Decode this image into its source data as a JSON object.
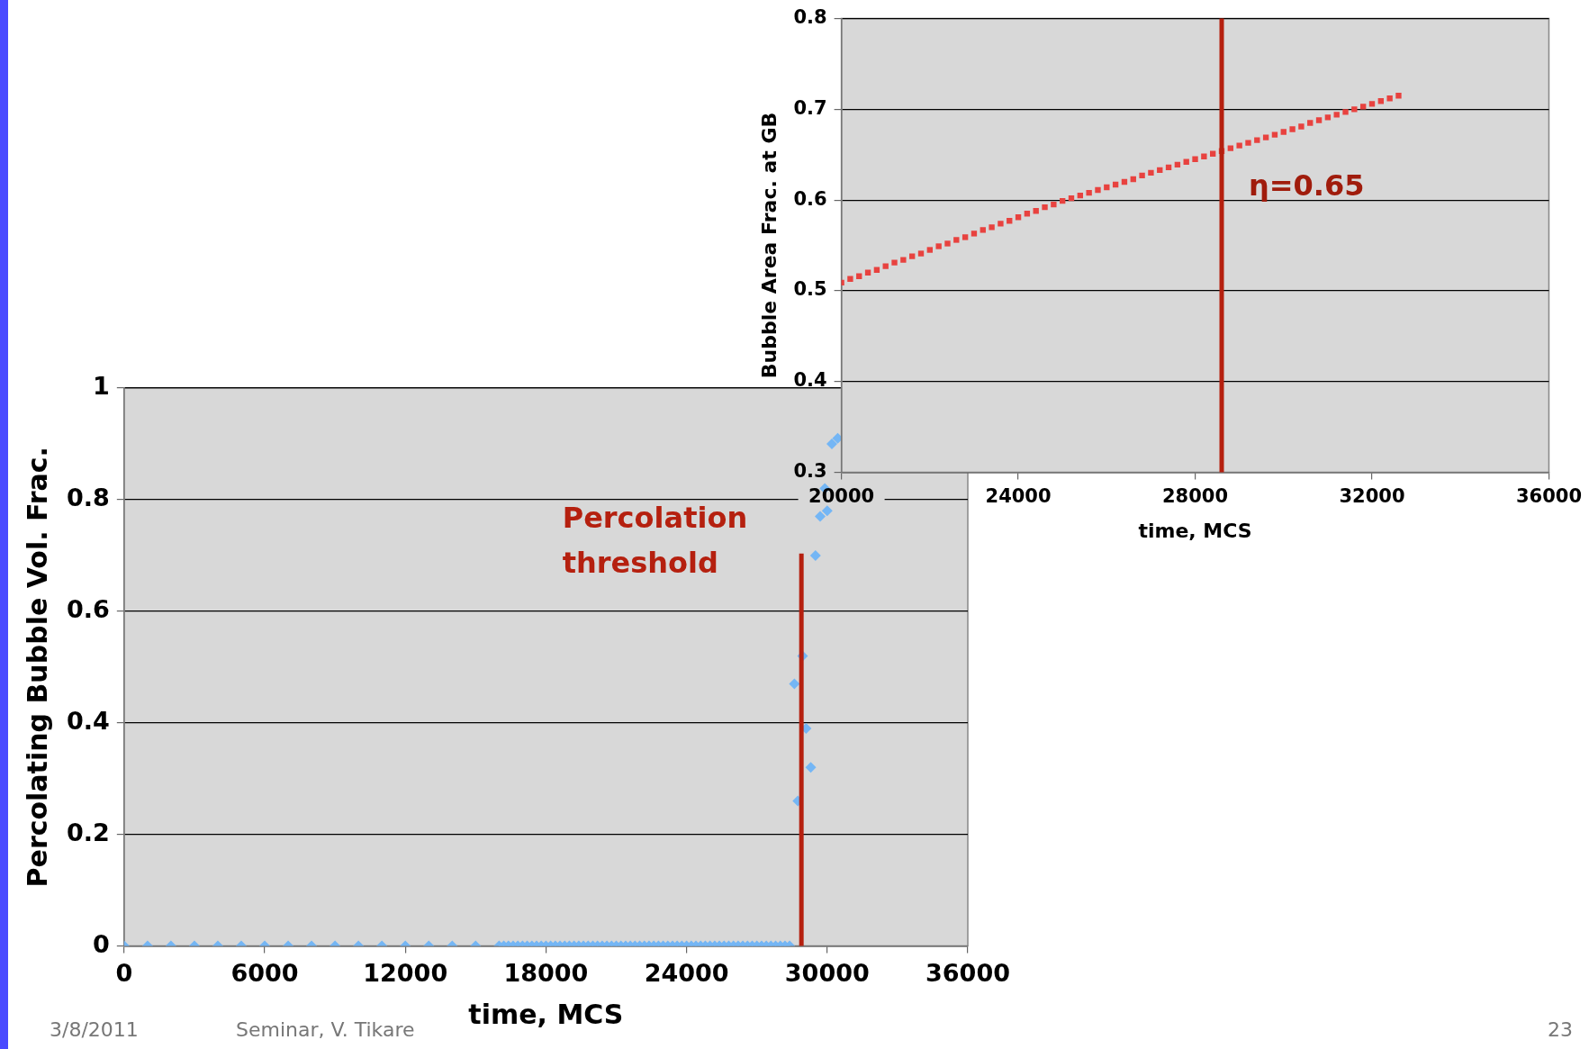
{
  "chart_data": [
    {
      "type": "scatter",
      "xlabel": "time, MCS",
      "ylabel": "Percolating Bubble Vol. Frac.",
      "xlim": [
        0,
        36000
      ],
      "ylim": [
        0,
        1
      ],
      "xticks": [
        0,
        6000,
        12000,
        18000,
        24000,
        30000,
        36000
      ],
      "yticks": [
        0,
        0.2,
        0.4,
        0.6,
        0.8,
        1
      ],
      "grid": "y",
      "marker": "diamond",
      "series": [
        {
          "color": "#74b6f5",
          "x": [
            0,
            1000,
            2000,
            3000,
            4000,
            5000,
            6000,
            7000,
            8000,
            9000,
            10000,
            11000,
            12000,
            13000,
            14000,
            15000,
            16000,
            16200,
            16400,
            16600,
            16800,
            17000,
            17200,
            17400,
            17600,
            17800,
            18000,
            18200,
            18400,
            18600,
            18800,
            19000,
            19200,
            19400,
            19600,
            19800,
            20000,
            20200,
            20400,
            20600,
            20800,
            21000,
            21200,
            21400,
            21600,
            21800,
            22000,
            22200,
            22400,
            22600,
            22800,
            23000,
            23200,
            23400,
            23600,
            23800,
            24000,
            24200,
            24400,
            24600,
            24800,
            25000,
            25200,
            25400,
            25600,
            25800,
            26000,
            26200,
            26400,
            26600,
            26800,
            27000,
            27200,
            27400,
            27600,
            27800,
            28000,
            28200,
            28400,
            28600,
            28750,
            28950,
            29100,
            29300,
            29500,
            29700,
            29900,
            30000,
            30200,
            30450
          ],
          "values": [
            0,
            0,
            0,
            0,
            0,
            0,
            0,
            0,
            0,
            0,
            0,
            0,
            0,
            0,
            0,
            0,
            0,
            0,
            0,
            0,
            0,
            0,
            0,
            0,
            0,
            0,
            0,
            0,
            0,
            0,
            0,
            0,
            0,
            0,
            0,
            0,
            0,
            0,
            0,
            0,
            0,
            0,
            0,
            0,
            0,
            0,
            0,
            0,
            0,
            0,
            0,
            0,
            0,
            0,
            0,
            0,
            0,
            0,
            0,
            0,
            0,
            0,
            0,
            0,
            0,
            0,
            0,
            0,
            0,
            0,
            0,
            0,
            0,
            0,
            0,
            0,
            0,
            0,
            0,
            0.47,
            0.26,
            0.52,
            0.39,
            0.32,
            0.7,
            0.77,
            0.82,
            0.78,
            0.9,
            0.91
          ]
        }
      ],
      "ref_lines": [
        {
          "axis": "x",
          "value": 28900,
          "label": "Percolation threshold",
          "color": "#b5200f"
        }
      ],
      "annotations": [
        "3/8/2011",
        "Seminar, V. Tikare",
        "23"
      ]
    },
    {
      "type": "scatter",
      "xlabel": "time, MCS",
      "ylabel": "Bubble Area Frac. at GB",
      "xlim": [
        20000,
        36000
      ],
      "ylim": [
        0.3,
        0.8
      ],
      "xticks": [
        20000,
        24000,
        28000,
        32000,
        36000
      ],
      "yticks": [
        0.3,
        0.4,
        0.5,
        0.6,
        0.7,
        0.8
      ],
      "grid": "y",
      "marker": "square",
      "series": [
        {
          "color": "#e8423f",
          "x": [
            20000,
            20200,
            20400,
            20600,
            20800,
            21000,
            21200,
            21400,
            21600,
            21800,
            22000,
            22200,
            22400,
            22600,
            22800,
            23000,
            23200,
            23400,
            23600,
            23800,
            24000,
            24200,
            24400,
            24600,
            24800,
            25000,
            25200,
            25400,
            25600,
            25800,
            26000,
            26200,
            26400,
            26600,
            26800,
            27000,
            27200,
            27400,
            27600,
            27800,
            28000,
            28200,
            28400,
            28600,
            28800,
            29000,
            29200,
            29400,
            29600,
            29800,
            30000,
            30200,
            30400,
            30600,
            30800,
            31000,
            31200,
            31400,
            31600,
            31800,
            32000,
            32200,
            32400,
            32600
          ],
          "values": [
            0.509,
            0.513,
            0.516,
            0.52,
            0.523,
            0.527,
            0.531,
            0.534,
            0.538,
            0.541,
            0.545,
            0.549,
            0.552,
            0.556,
            0.559,
            0.563,
            0.567,
            0.57,
            0.574,
            0.577,
            0.581,
            0.585,
            0.588,
            0.592,
            0.595,
            0.599,
            0.602,
            0.605,
            0.608,
            0.611,
            0.614,
            0.617,
            0.62,
            0.623,
            0.627,
            0.63,
            0.633,
            0.636,
            0.639,
            0.642,
            0.645,
            0.648,
            0.651,
            0.654,
            0.657,
            0.66,
            0.663,
            0.666,
            0.669,
            0.672,
            0.675,
            0.678,
            0.681,
            0.685,
            0.688,
            0.691,
            0.694,
            0.697,
            0.7,
            0.703,
            0.706,
            0.709,
            0.712,
            0.715
          ]
        }
      ],
      "ref_lines": [
        {
          "axis": "x",
          "value": 28600,
          "color": "#b5200f"
        }
      ],
      "annotations": [
        "η=0.65"
      ]
    }
  ]
}
